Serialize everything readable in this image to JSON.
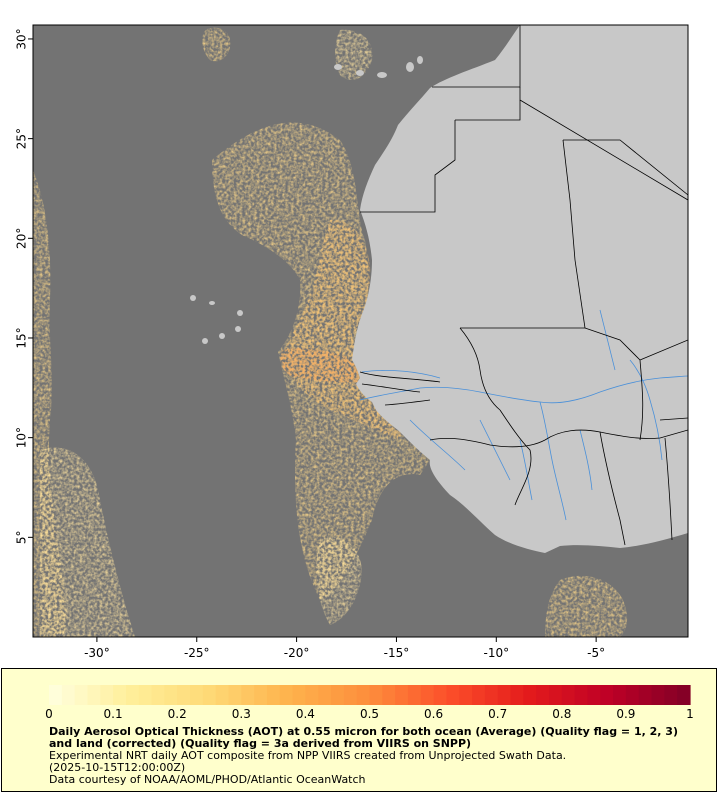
{
  "map": {
    "x_ticks": [
      {
        "lon": -30,
        "label": "-30°"
      },
      {
        "lon": -25,
        "label": "-25°"
      },
      {
        "lon": -20,
        "label": "-20°"
      },
      {
        "lon": -15,
        "label": "-15°"
      },
      {
        "lon": -10,
        "label": "-10°"
      },
      {
        "lon": -5,
        "label": "-5°"
      }
    ],
    "y_ticks": [
      {
        "lat": 5,
        "label": "5°"
      },
      {
        "lat": 10,
        "label": "10°"
      },
      {
        "lat": 15,
        "label": "15°"
      },
      {
        "lat": 20,
        "label": "20°"
      },
      {
        "lat": 25,
        "label": "25°"
      },
      {
        "lat": 30,
        "label": "30°"
      }
    ],
    "lon_range": [
      -33.2,
      -0.4
    ],
    "lat_range": [
      0.0,
      30.7
    ],
    "colors": {
      "ocean_nodata": "#737373",
      "land": "#c8c8c8",
      "border": "#000000",
      "river": "#4a90d9"
    }
  },
  "legend": {
    "colorbar_ticks": [
      "0",
      "0.1",
      "0.2",
      "0.3",
      "0.4",
      "0.5",
      "0.6",
      "0.7",
      "0.8",
      "0.9",
      "1"
    ],
    "colorbar_range": [
      0,
      1
    ],
    "colorbar_stops": [
      "#ffffe0",
      "#ffef9a",
      "#fed976",
      "#feb24c",
      "#fd8d3c",
      "#fc4e2a",
      "#e31a1c",
      "#bd0026",
      "#800026"
    ],
    "title": "Daily Aerosol Optical Thickness (AOT) at 0.55 micron for both ocean (Average) (Quality flag = 1, 2, 3) and land (corrected) (Quality flag = 3a derived from VIIRS on SNPP)",
    "line1": "Experimental NRT daily AOT composite from NPP VIIRS created from Unprojected Swath Data.",
    "line2": "(2025-10-15T12:00:00Z)",
    "line3": "Data courtesy of NOAA/AOML/PHOD/Atlantic OceanWatch"
  }
}
